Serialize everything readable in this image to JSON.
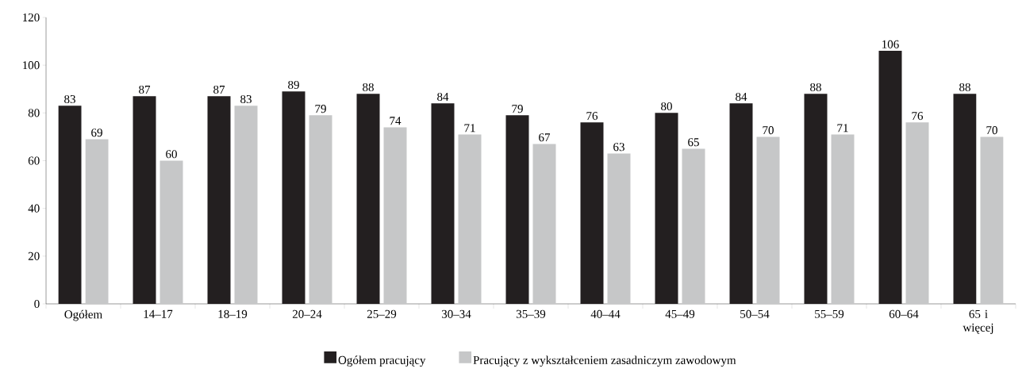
{
  "chart_data": {
    "type": "bar",
    "categories": [
      "Ogółem",
      "14–17",
      "18–19",
      "20–24",
      "25–29",
      "30–34",
      "35–39",
      "40–44",
      "45–49",
      "50–54",
      "55–59",
      "60–64",
      "65 i więcej"
    ],
    "series": [
      {
        "name": "Ogółem pracujący",
        "color": "#231f20",
        "values": [
          83,
          87,
          87,
          89,
          88,
          84,
          79,
          76,
          80,
          84,
          88,
          106,
          88
        ]
      },
      {
        "name": "Pracujący z wykształceniem zasadniczym zawodowym",
        "color": "#c6c7c8",
        "values": [
          69,
          60,
          83,
          79,
          74,
          71,
          67,
          63,
          65,
          70,
          71,
          76,
          70
        ]
      }
    ],
    "ylim": [
      0,
      120
    ],
    "yticks": [
      0,
      20,
      40,
      60,
      80,
      100,
      120
    ],
    "data_labels": true,
    "grid": false,
    "legend": "bottom"
  }
}
